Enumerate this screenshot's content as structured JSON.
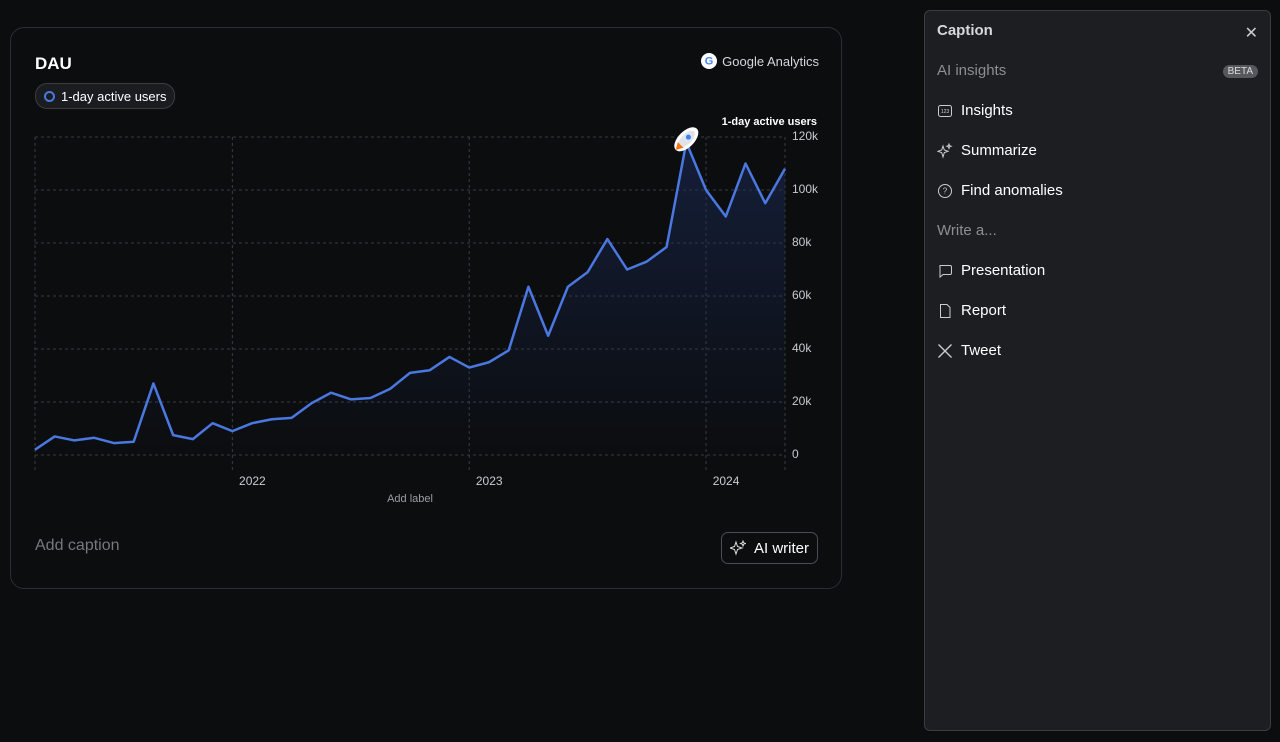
{
  "chart_data": {
    "type": "line",
    "title": "DAU",
    "categories": [
      null,
      null,
      null,
      null,
      null,
      null,
      null,
      null,
      null,
      null,
      "2022",
      null,
      null,
      null,
      null,
      null,
      null,
      null,
      null,
      null,
      null,
      null,
      "2023",
      null,
      null,
      null,
      null,
      null,
      null,
      null,
      null,
      null,
      null,
      null,
      "2024",
      null,
      null,
      null,
      null
    ],
    "series": [
      {
        "name": "1-day active users",
        "color": "#4a78e0",
        "values": [
          2000,
          7000,
          5500,
          6500,
          4500,
          5000,
          27000,
          7500,
          6000,
          12000,
          9000,
          12000,
          13500,
          14000,
          19500,
          23500,
          21000,
          21500,
          25000,
          31000,
          32000,
          37000,
          33000,
          35000,
          39500,
          63500,
          45000,
          63500,
          69000,
          81500,
          70000,
          73000,
          78500,
          118000,
          100000,
          90000,
          110000,
          95000,
          108000
        ]
      }
    ],
    "ylim": [
      0,
      120000
    ],
    "yticks": [
      {
        "value": 0,
        "label": "0"
      },
      {
        "value": 20000,
        "label": "20k"
      },
      {
        "value": 40000,
        "label": "40k"
      },
      {
        "value": 60000,
        "label": "60k"
      },
      {
        "value": 80000,
        "label": "80k"
      },
      {
        "value": 100000,
        "label": "100k"
      },
      {
        "value": 120000,
        "label": "120k"
      }
    ],
    "y_label": "1-day active users",
    "x_label": "Add label",
    "grid": true
  },
  "card": {
    "source": "Google Analytics",
    "caption_placeholder": "Add caption",
    "button": "AI writer"
  },
  "panel": {
    "title": "Caption",
    "sections": [
      {
        "heading": "AI insights",
        "badge": "BETA",
        "items": [
          "Insights",
          "Summarize",
          "Find anomalies"
        ]
      },
      {
        "heading": "Write a...",
        "items": [
          "Presentation",
          "Report",
          "Tweet"
        ]
      }
    ]
  }
}
